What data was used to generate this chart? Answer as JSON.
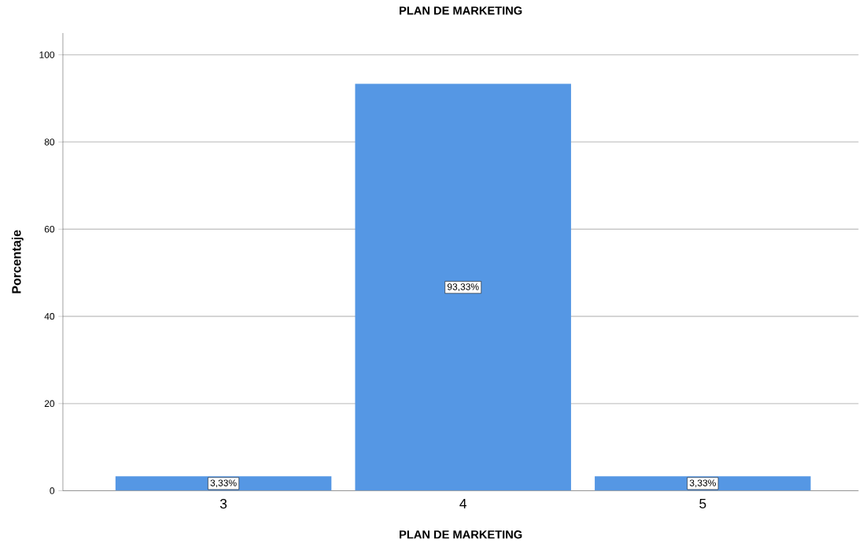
{
  "chart_data": {
    "type": "bar",
    "title": "PLAN DE MARKETING",
    "xlabel": "PLAN DE MARKETING",
    "ylabel": "Porcentaje",
    "categories": [
      "3",
      "4",
      "5"
    ],
    "values": [
      3.33,
      93.33,
      3.33
    ],
    "value_labels": [
      "3,33%",
      "93,33%",
      "3,33%"
    ],
    "color": "#5597e4",
    "ylim": [
      0,
      105
    ],
    "yticks": [
      0,
      20,
      40,
      60,
      80,
      100
    ],
    "grid": "y"
  }
}
